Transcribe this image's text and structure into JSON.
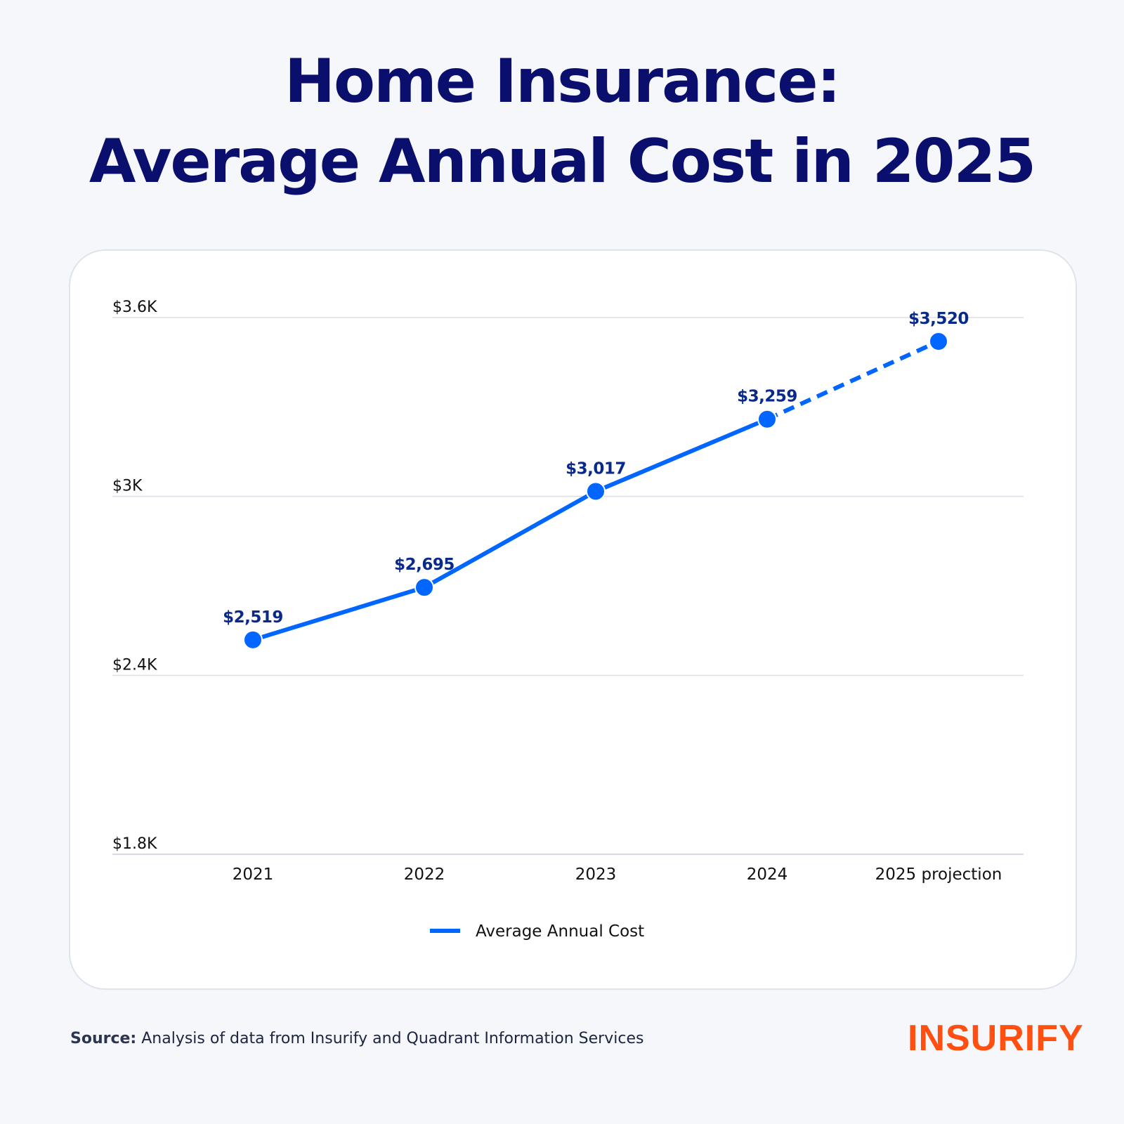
{
  "title_line1": "Home Insurance:",
  "title_line2": "Average Annual Cost in 2025",
  "chart_data": {
    "type": "line",
    "categories": [
      "2021",
      "2022",
      "2023",
      "2024",
      "2025 projection"
    ],
    "series": [
      {
        "name": "Average Annual Cost",
        "values": [
          2519,
          2695,
          3017,
          3259,
          3520
        ],
        "labels": [
          "$2,519",
          "$2,695",
          "$3,017",
          "$3,259",
          "$3,520"
        ],
        "projected_from_index": 3
      }
    ],
    "yticks": [
      1800,
      2400,
      3000,
      3600
    ],
    "ytick_labels": [
      "$1.8K",
      "$2.4K",
      "$3K",
      "$3.6K"
    ],
    "ylim": [
      1800,
      3600
    ],
    "grid": true,
    "legend": "bottom-center",
    "color": "#0066ff",
    "label_color": "#0a2a8a"
  },
  "source_label": "Source:",
  "source_text": " Analysis of data from Insurify and Quadrant Information Services",
  "logo": "INSURIFY"
}
